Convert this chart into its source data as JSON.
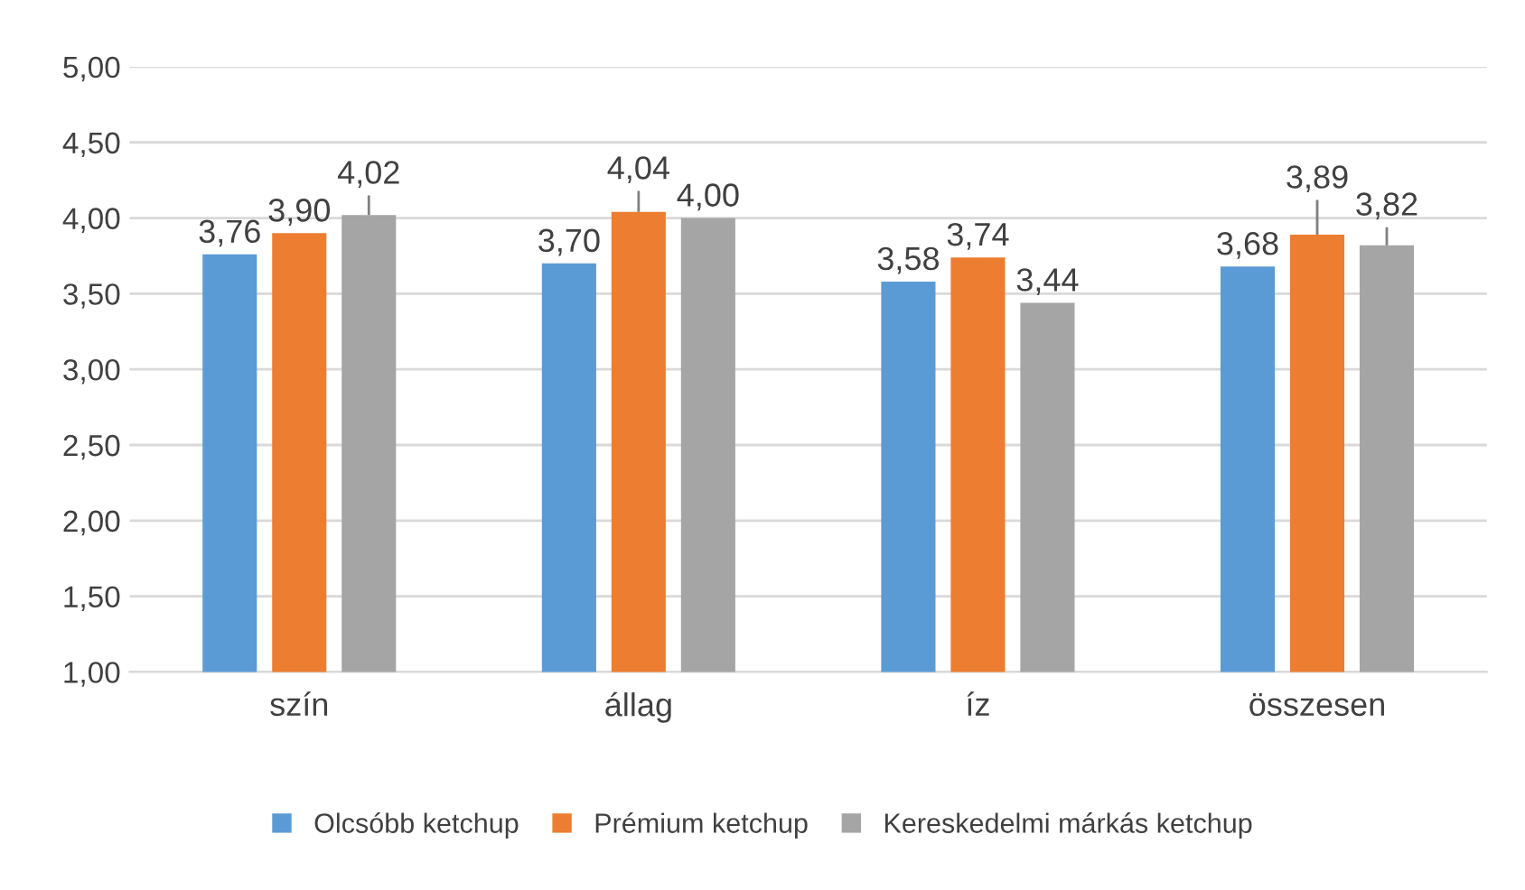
{
  "chart_data": {
    "type": "bar",
    "categories": [
      "szín",
      "állag",
      "íz",
      "összesen"
    ],
    "series": [
      {
        "name": "Olcsóbb ketchup",
        "color": "#5b9bd5",
        "values": [
          3.76,
          3.7,
          3.58,
          3.68
        ],
        "value_labels": [
          "3,76",
          "3,70",
          "3,58",
          "3,68"
        ]
      },
      {
        "name": "Prémium ketchup",
        "color": "#ed7d31",
        "values": [
          3.9,
          4.04,
          3.74,
          3.89
        ],
        "value_labels": [
          "3,90",
          "4,04",
          "3,74",
          "3,89"
        ],
        "errors": [
          null,
          [
            4.04,
            4.18
          ],
          null,
          [
            3.89,
            4.12
          ]
        ]
      },
      {
        "name": "Kereskedelmi márkás ketchup",
        "color": "#a5a5a5",
        "values": [
          4.02,
          4.0,
          3.44,
          3.82
        ],
        "value_labels": [
          "4,02",
          "4,00",
          "3,44",
          "3,82"
        ],
        "errors": [
          [
            4.02,
            4.15
          ],
          null,
          null,
          [
            3.82,
            3.94
          ]
        ]
      }
    ],
    "ylim": [
      1.0,
      5.0
    ],
    "yticks": [
      {
        "value": 1.0,
        "label": "1,00"
      },
      {
        "value": 1.5,
        "label": "1,50"
      },
      {
        "value": 2.0,
        "label": "2,00"
      },
      {
        "value": 2.5,
        "label": "2,50"
      },
      {
        "value": 3.0,
        "label": "3,00"
      },
      {
        "value": 3.5,
        "label": "3,50"
      },
      {
        "value": 4.0,
        "label": "4,00"
      },
      {
        "value": 4.5,
        "label": "4,50"
      },
      {
        "value": 5.0,
        "label": "5,00"
      }
    ],
    "grid": "y",
    "legend": "bottom"
  }
}
